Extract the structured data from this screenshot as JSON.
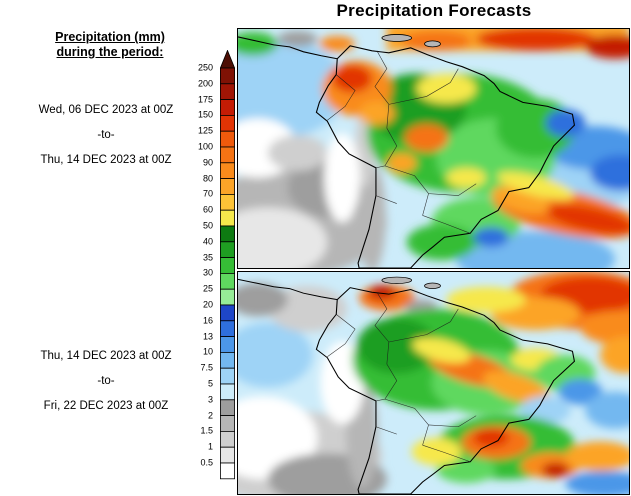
{
  "title": "Precipitation Forecasts",
  "legend": {
    "heading_line1": "Precipitation (mm)",
    "heading_line2": "during the period:",
    "ticks": [
      "250",
      "200",
      "175",
      "150",
      "125",
      "100",
      "90",
      "80",
      "70",
      "60",
      "50",
      "40",
      "35",
      "30",
      "25",
      "20",
      "16",
      "13",
      "10",
      "7.5",
      "5",
      "3",
      "2",
      "1.5",
      "1",
      "0.5"
    ],
    "colors_top_to_bottom": [
      "#4d0f05",
      "#7f1205",
      "#a01505",
      "#c41c05",
      "#e23405",
      "#ef5a0c",
      "#f57314",
      "#f98b1c",
      "#fca428",
      "#fec337",
      "#f6e84c",
      "#0e7a12",
      "#1f9e22",
      "#36bd36",
      "#5fd85f",
      "#97ec97",
      "#1e46c8",
      "#2f6fdd",
      "#4c97e8",
      "#73b8f0",
      "#9ed3f6",
      "#cdecfa",
      "#9e9e9e",
      "#b6b6b6",
      "#cfcfcf",
      "#e7e7e7",
      "#ffffff"
    ]
  },
  "panels": [
    {
      "start_label": "Wed, 06 DEC 2023 at 00Z",
      "to_label": "-to-",
      "end_label": "Thu, 14 DEC 2023 at 00Z"
    },
    {
      "start_label": "Thu, 14 DEC 2023 at 00Z",
      "to_label": "-to-",
      "end_label": "Fri, 22 DEC 2023 at 00Z"
    }
  ]
}
